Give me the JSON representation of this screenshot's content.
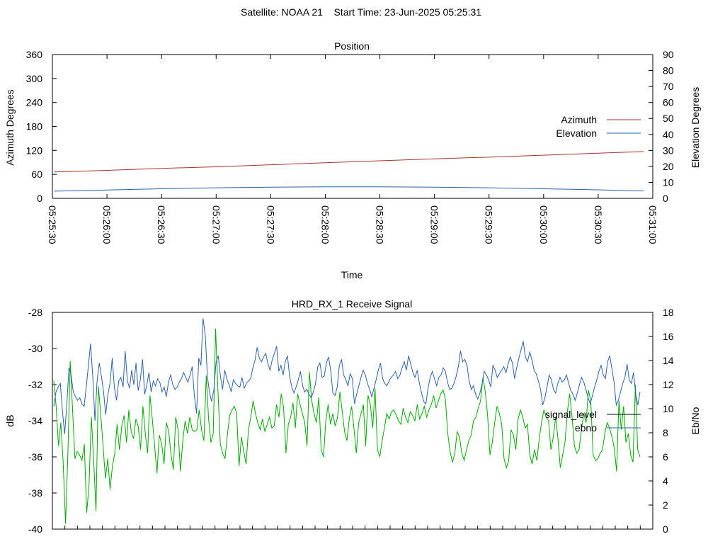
{
  "page_title": "Satellite: NOAA 21    Start Time: 23-Jun-2025 05:25:31",
  "chart_data": [
    {
      "type": "line",
      "title": "Position",
      "xlabel": "Time",
      "ylabel": "Azimuth Degrees",
      "y2label": "Elevation Degrees",
      "x_ticks": [
        "05:25:30",
        "05:26:00",
        "05:26:30",
        "05:27:00",
        "05:27:30",
        "05:28:00",
        "05:28:30",
        "05:29:00",
        "05:29:30",
        "05:30:00",
        "05:30:30",
        "05:31:00"
      ],
      "xlim": [
        "05:25:30",
        "05:31:00"
      ],
      "ylim": [
        0,
        360
      ],
      "y_ticks": [
        0,
        60,
        120,
        180,
        240,
        300,
        360
      ],
      "y2lim": [
        0,
        90
      ],
      "y2_ticks": [
        0,
        10,
        20,
        30,
        40,
        50,
        60,
        70,
        80,
        90
      ],
      "legend_position": "right",
      "grid": false,
      "series": [
        {
          "name": "Azimuth",
          "axis": "left",
          "color": "#a83232",
          "x": [
            "05:25:31",
            "05:26:00",
            "05:26:30",
            "05:27:00",
            "05:27:30",
            "05:28:00",
            "05:28:30",
            "05:29:00",
            "05:29:30",
            "05:30:00",
            "05:30:30",
            "05:30:55"
          ],
          "values": [
            66,
            70,
            75,
            79,
            84,
            89,
            94,
            99,
            103,
            108,
            113,
            117
          ]
        },
        {
          "name": "Elevation",
          "axis": "right",
          "color": "#3060a8",
          "x": [
            "05:25:31",
            "05:26:00",
            "05:26:30",
            "05:27:00",
            "05:27:30",
            "05:28:00",
            "05:28:30",
            "05:29:00",
            "05:29:30",
            "05:30:00",
            "05:30:30",
            "05:30:55"
          ],
          "values": [
            4.5,
            5.2,
            6.0,
            6.6,
            7.0,
            7.2,
            7.2,
            7.0,
            6.6,
            6.0,
            5.3,
            4.6
          ]
        }
      ]
    },
    {
      "type": "line",
      "title": "HRD_RX_1 Receive Signal",
      "ylabel": "dB",
      "y2label": "Eb/No",
      "ylim": [
        -40,
        -28
      ],
      "y_ticks": [
        -40,
        -38,
        -36,
        -34,
        -32,
        -30,
        -28
      ],
      "y2lim": [
        0,
        18
      ],
      "y2_ticks": [
        0,
        2,
        4,
        6,
        8,
        10,
        12,
        14,
        16,
        18
      ],
      "legend_position": "right",
      "grid": false,
      "series": [
        {
          "name": "signal_level",
          "axis": "left",
          "color": "#00aa00",
          "values": [
            -31.8,
            -33.2,
            -35.4,
            -34.1,
            -36.3,
            -39.7,
            -35.8,
            -30.7,
            -33.4,
            -36.1,
            -35.7,
            -35.9,
            -36.2,
            -35.3,
            -39.1,
            -37.6,
            -33.8,
            -36.2,
            -39.0,
            -32.1,
            -33.6,
            -35.4,
            -37.2,
            -36.1,
            -37.8,
            -36.5,
            -35.8,
            -34.2,
            -35.6,
            -34.3,
            -33.7,
            -35.2,
            -33.4,
            -34.6,
            -35.0,
            -33.9,
            -34.3,
            -35.6,
            -33.2,
            -34.7,
            -35.8,
            -32.6,
            -33.9,
            -35.4,
            -36.9,
            -34.8,
            -35.3,
            -36.4,
            -34.1,
            -34.6,
            -35.9,
            -36.7,
            -33.8,
            -34.5,
            -36.8,
            -35.1,
            -34.0,
            -34.7,
            -33.8,
            -34.5,
            -34.6,
            -34.5,
            -33.4,
            -34.5,
            -35.1,
            -31.5,
            -33.9,
            -35.2,
            -34.7,
            -28.9,
            -32.3,
            -35.3,
            -35.8,
            -36.1,
            -34.8,
            -33.7,
            -33.4,
            -33.2,
            -33.6,
            -36.5,
            -34.9,
            -35.7,
            -36.4,
            -34.5,
            -33.8,
            -32.9,
            -33.6,
            -34.1,
            -34.5,
            -33.9,
            -34.6,
            -34.2,
            -33.8,
            -34.4,
            -34.3,
            -33.1,
            -33.8,
            -32.5,
            -33.3,
            -35.8,
            -34.2,
            -33.8,
            -33.0,
            -34.4,
            -32.5,
            -33.1,
            -33.6,
            -34.1,
            -35.4,
            -31.3,
            -32.9,
            -33.6,
            -34.1,
            -32.7,
            -35.6,
            -36.0,
            -34.0,
            -33.1,
            -34.2,
            -33.6,
            -34.3,
            -33.8,
            -32.4,
            -33.5,
            -34.6,
            -35.1,
            -33.9,
            -33.2,
            -34.4,
            -35.8,
            -34.1,
            -33.6,
            -33.1,
            -35.4,
            -32.6,
            -33.1,
            -34.4,
            -32.2,
            -35.6,
            -36.0,
            -35.1,
            -34.4,
            -33.6,
            -33.9,
            -33.5,
            -33.4,
            -33.7,
            -34.0,
            -34.2,
            -33.3,
            -33.8,
            -34.1,
            -33.5,
            -33.7,
            -34.0,
            -33.1,
            -33.9,
            -33.6,
            -33.2,
            -33.8,
            -33.4,
            -33.1,
            -32.6,
            -33.3,
            -32.9,
            -32.5,
            -32.3,
            -32.8,
            -34.7,
            -35.7,
            -36.3,
            -35.8,
            -34.6,
            -34.9,
            -35.8,
            -36.2,
            -35.6,
            -35.1,
            -34.8,
            -34.0,
            -33.8,
            -33.3,
            -32.9,
            -31.6,
            -32.4,
            -33.7,
            -35.9,
            -35.2,
            -34.1,
            -33.2,
            -33.6,
            -34.2,
            -36.1,
            -36.6,
            -36.2,
            -34.5,
            -34.8,
            -35.6,
            -33.9,
            -33.4,
            -33.8,
            -34.4,
            -34.2,
            -35.9,
            -36.4,
            -35.6,
            -36.2,
            -35.0,
            -34.1,
            -33.4,
            -33.8,
            -34.0,
            -35.6,
            -34.9,
            -33.8,
            -35.0,
            -36.6,
            -35.9,
            -35.2,
            -33.5,
            -32.5,
            -33.8,
            -35.4,
            -35.8,
            -35.6,
            -34.5,
            -33.6,
            -34.1,
            -32.3,
            -32.9,
            -35.9,
            -36.2,
            -36.1,
            -35.8,
            -35.6,
            -34.7,
            -34.1,
            -34.4,
            -34.9,
            -35.5,
            -36.8,
            -32.9,
            -34.5,
            -33.2,
            -35.2,
            -34.7,
            -35.9,
            -36.3,
            -32.0,
            -35.6,
            -36.0
          ],
          "notes": "estimated trace shape"
        },
        {
          "name": "ebno",
          "axis": "right",
          "color": "#3060a8",
          "values": [
            10.2,
            11.4,
            11.8,
            12.1,
            9.8,
            7.9,
            10.3,
            13.4,
            12.8,
            11.4,
            11.0,
            10.7,
            10.9,
            10.4,
            10.2,
            11.8,
            13.6,
            15.4,
            12.7,
            9.0,
            12.3,
            13.8,
            12.7,
            11.4,
            9.5,
            11.2,
            12.1,
            14.2,
            11.8,
            10.7,
            12.3,
            12.6,
            11.8,
            14.8,
            12.3,
            11.7,
            13.2,
            12.0,
            13.8,
            11.5,
            12.4,
            14.1,
            11.2,
            12.0,
            13.0,
            11.4,
            12.3,
            11.9,
            12.5,
            12.2,
            11.4,
            11.8,
            11.0,
            12.2,
            12.8,
            12.0,
            11.6,
            11.8,
            12.2,
            12.5,
            13.0,
            12.6,
            12.2,
            12.8,
            13.5,
            11.0,
            9.6,
            14.2,
            13.6,
            17.5,
            16.1,
            12.7,
            11.3,
            10.6,
            11.6,
            13.9,
            14.4,
            12.7,
            11.6,
            13.2,
            12.5,
            12.0,
            11.4,
            12.4,
            12.1,
            11.9,
            11.8,
            12.6,
            11.7,
            12.1,
            12.3,
            12.5,
            13.4,
            14.0,
            15.1,
            14.2,
            13.9,
            14.3,
            14.6,
            13.7,
            13.2,
            14.1,
            14.6,
            15.2,
            13.1,
            13.6,
            12.8,
            13.9,
            14.4,
            12.7,
            11.8,
            11.3,
            11.8,
            12.4,
            13.1,
            11.9,
            11.4,
            11.6,
            11.2,
            10.9,
            11.4,
            12.1,
            13.5,
            13.8,
            12.6,
            12.7,
            13.8,
            14.3,
            13.2,
            11.3,
            11.1,
            11.8,
            13.6,
            14.1,
            12.8,
            12.4,
            11.9,
            12.9,
            12.5,
            10.4,
            11.2,
            11.9,
            12.6,
            13.2,
            12.8,
            12.1,
            11.6,
            11.0,
            11.7,
            12.4,
            13.2,
            13.8,
            12.5,
            12.1,
            11.9,
            12.3,
            12.6,
            12.8,
            13.1,
            12.5,
            12.8,
            13.4,
            13.9,
            13.2,
            14.4,
            13.7,
            13.0,
            12.6,
            13.2,
            12.1,
            11.3,
            10.6,
            10.4,
            11.7,
            12.6,
            13.1,
            12.5,
            11.9,
            12.6,
            12.8,
            13.4,
            13.1,
            12.2,
            11.6,
            11.7,
            12.1,
            12.7,
            13.5,
            14.8,
            13.9,
            14.1,
            13.6,
            12.3,
            11.6,
            11.9,
            11.2,
            10.8,
            11.3,
            12.1,
            13.1,
            12.8,
            12.4,
            11.8,
            13.6,
            13.2,
            12.6,
            12.9,
            13.2,
            13.5,
            13.0,
            13.7,
            14.3,
            13.8,
            12.5,
            13.4,
            14.2,
            14.9,
            15.6,
            14.3,
            13.9,
            14.7,
            14.1,
            13.2,
            12.9,
            12.3,
            11.6,
            10.3,
            10.9,
            11.8,
            12.8,
            12.4,
            11.6,
            11.3,
            12.1,
            12.6,
            12.2,
            12.4,
            12.8,
            12.1,
            11.5,
            11.2,
            10.7,
            11.3,
            12.0,
            12.6,
            12.2,
            11.6,
            10.9,
            10.4,
            11.1,
            11.8,
            12.4,
            13.1,
            13.6,
            12.8,
            12.5,
            13.9,
            14.4,
            13.3,
            12.2,
            10.3,
            10.7,
            11.4,
            12.1,
            12.6,
            13.7,
            12.4,
            12.1,
            13.0,
            11.2,
            10.3,
            11.4
          ],
          "notes": "estimated trace shape"
        }
      ]
    }
  ]
}
